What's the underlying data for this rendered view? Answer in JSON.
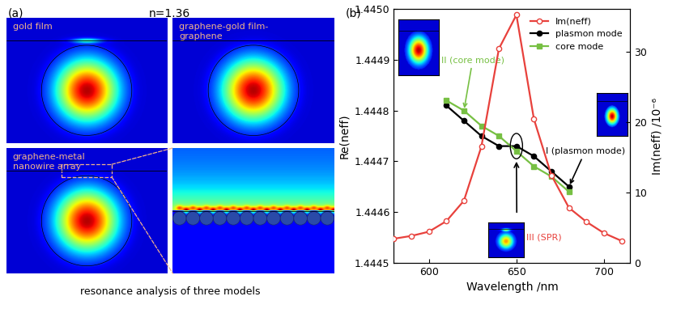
{
  "panel_a": {
    "label": "(a)",
    "subtitle": "n=1.36",
    "images": [
      "gold film",
      "graphene-gold film-\ngraphene",
      "graphene-metal\nnanowire array"
    ],
    "caption": "resonance analysis of three models"
  },
  "chart_data": {
    "panel_label": "(b)",
    "type": "line",
    "x_label": "Wavelength /nm",
    "y_label": "Re(neff)",
    "y2_label": "Im(neff) /10⁻⁶",
    "xlim": [
      580,
      715
    ],
    "xticks": [
      600,
      650,
      700
    ],
    "ylim": [
      1.4445,
      1.445
    ],
    "yticks": [
      1.4445,
      1.4446,
      1.4447,
      1.4448,
      1.4449,
      {
        "value": 1.445,
        "label": "1.4450"
      }
    ],
    "y2lim": [
      0,
      36
    ],
    "y2ticks": [
      0,
      10,
      20,
      30
    ],
    "legend": "upper right",
    "series": [
      {
        "name": "Im(neff)",
        "color": "#e8413c",
        "marker": "o",
        "axis": "y2",
        "x": [
          580,
          590,
          600,
          610,
          620,
          630,
          640,
          650,
          660,
          670,
          680,
          690,
          700,
          710
        ],
        "values": [
          3.4,
          3.8,
          4.4,
          5.9,
          8.8,
          16.5,
          30.4,
          35.2,
          20.4,
          12.4,
          7.8,
          5.8,
          4.2,
          3.1
        ]
      },
      {
        "name": "plasmon mode",
        "color": "#000000",
        "marker": "o",
        "x": [
          610,
          620,
          630,
          640,
          650,
          660,
          670,
          680
        ],
        "values": [
          1.44481,
          1.44478,
          1.44475,
          1.44473,
          1.44473,
          1.44471,
          1.44468,
          1.44465
        ]
      },
      {
        "name": "core mode",
        "color": "#77c043",
        "marker": "s",
        "x": [
          610,
          620,
          630,
          640,
          650,
          660,
          670,
          680
        ],
        "values": [
          1.44482,
          1.4448,
          1.44477,
          1.44475,
          1.44472,
          1.44469,
          1.44467,
          1.44464
        ]
      }
    ],
    "annotations": [
      "II (core mode)",
      "I (plasmon mode)",
      "III (SPR)"
    ]
  }
}
